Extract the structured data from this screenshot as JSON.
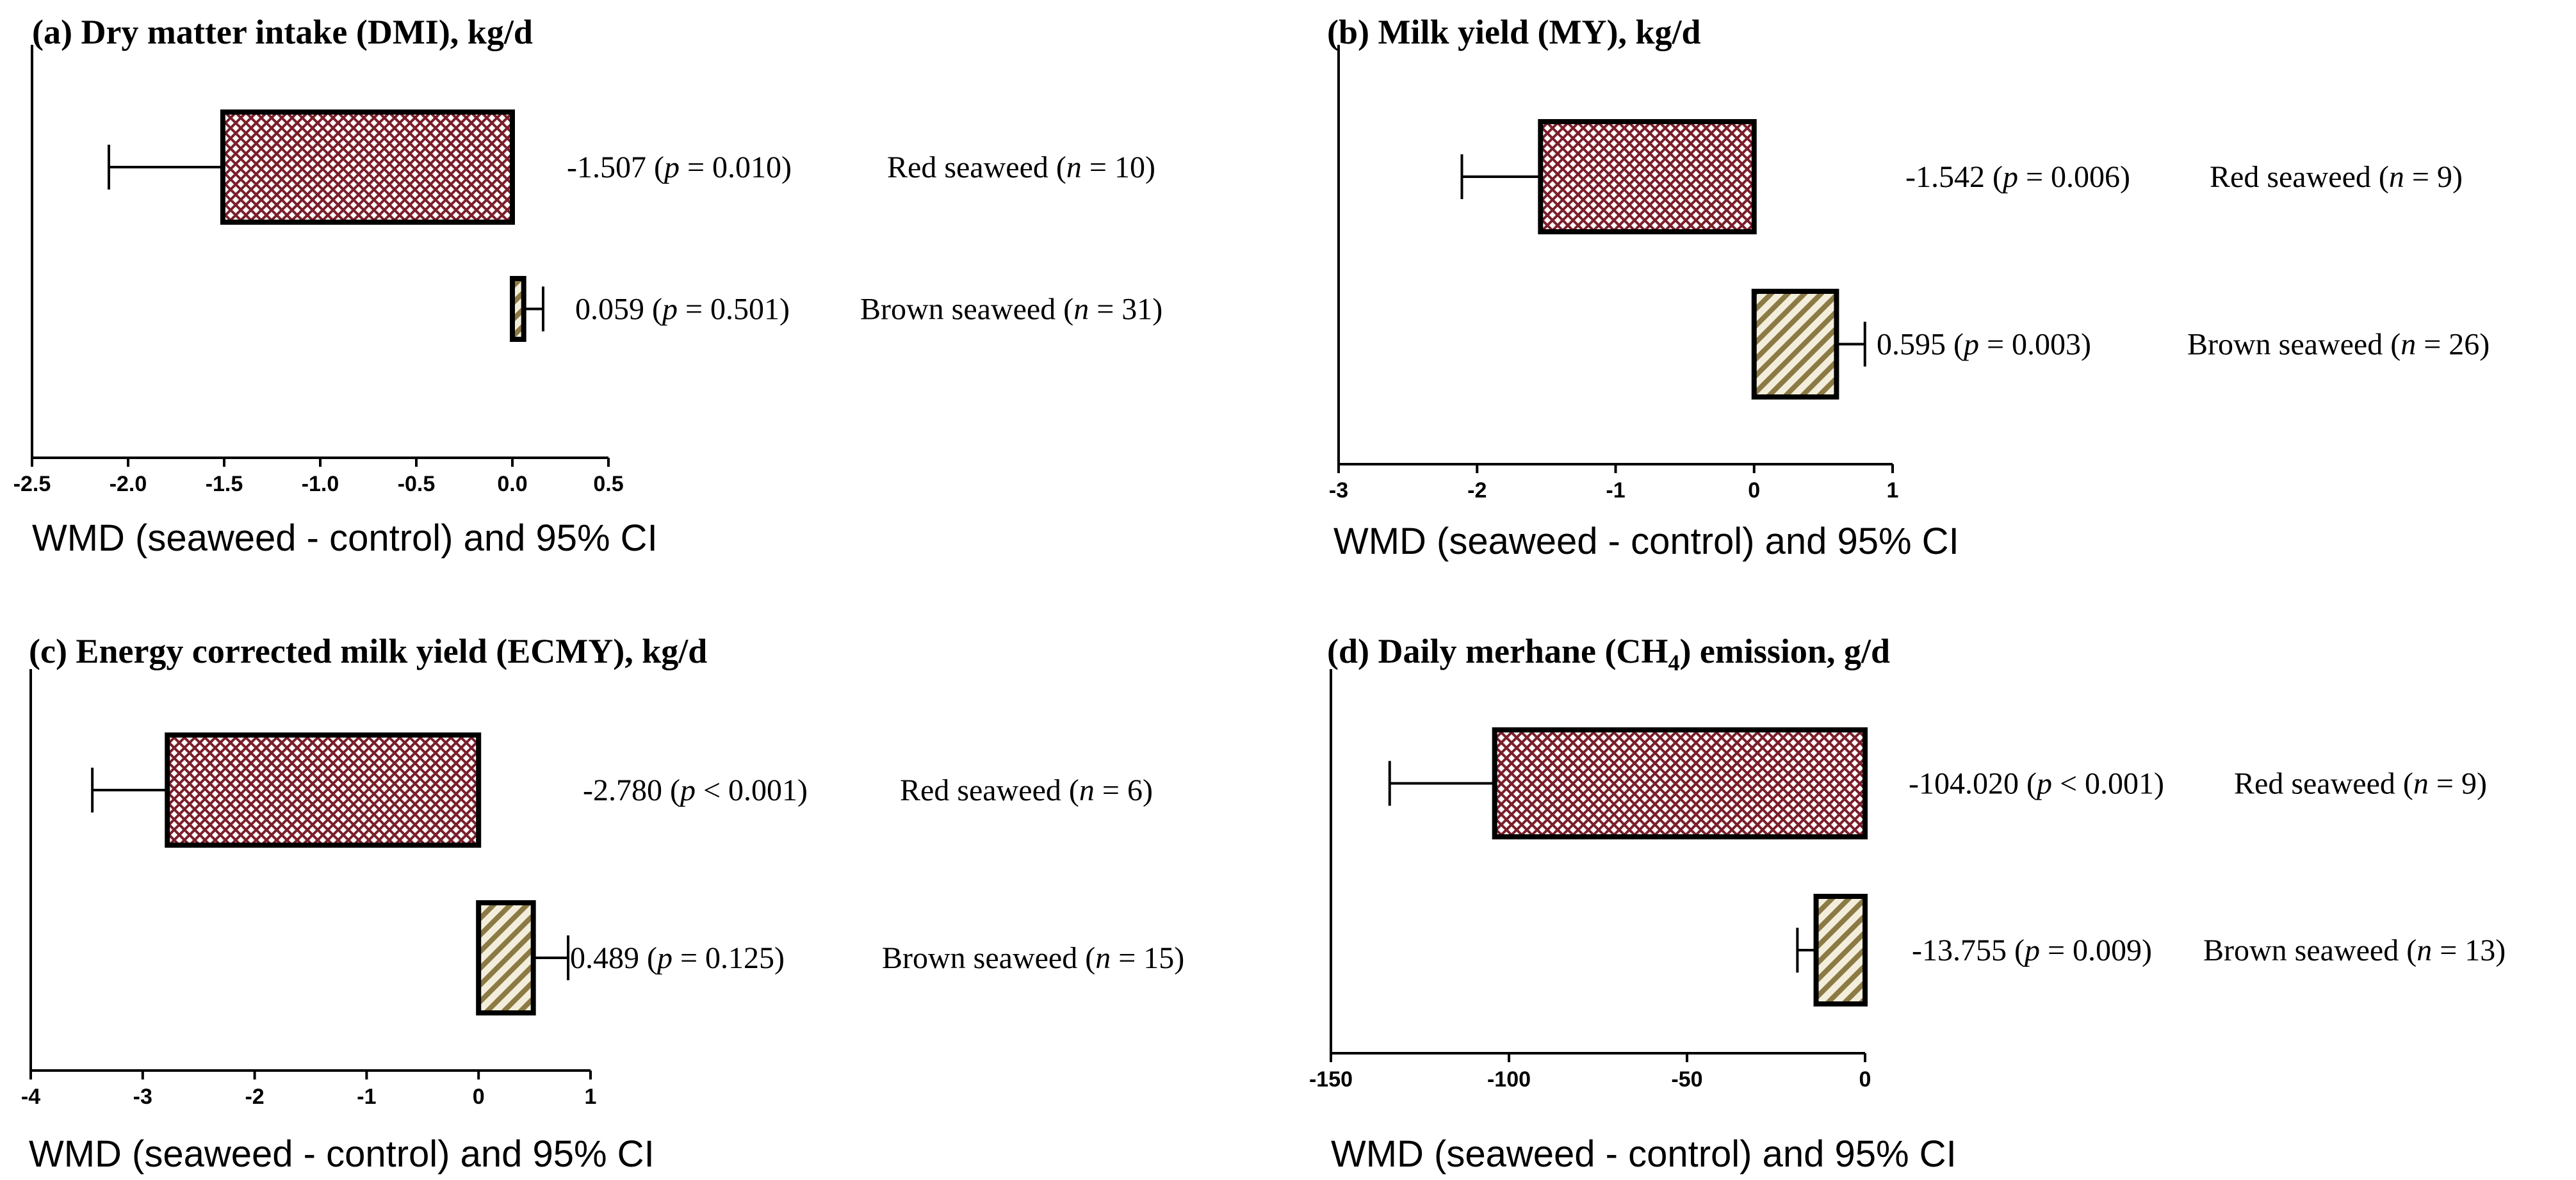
{
  "colors": {
    "red_seaweed_fill": "#7a1f2b",
    "red_seaweed_bg": "#ffffff",
    "brown_seaweed_fill": "#8c7a45",
    "brown_seaweed_bg": "#f3eedc",
    "axis": "#000000"
  },
  "chart_data": [
    {
      "id": "a",
      "type": "bar",
      "orientation": "horizontal",
      "title": "(a) Dry matter intake (DMI), kg/d",
      "title_html": [
        "(a) Dry matter intake (DMI), kg/d"
      ],
      "xlabel": "WMD (seaweed - control) and 95% CI",
      "ylabel": "",
      "xlim": [
        -2.5,
        0.5
      ],
      "xticks": [
        -2.5,
        -2.0,
        -1.5,
        -1.0,
        -0.5,
        0.0,
        0.5
      ],
      "xtick_labels": [
        "-2.5",
        "-2.0",
        "-1.5",
        "-1.0",
        "-0.5",
        "0.0",
        "0.5"
      ],
      "categories": [
        "Red seaweed",
        "Brown seaweed"
      ],
      "values": [
        -1.507,
        0.059
      ],
      "ci_bound": [
        -2.1,
        0.16
      ],
      "p_values": [
        "0.010",
        "0.501"
      ],
      "p_relation": [
        "=",
        "="
      ],
      "n": [
        10,
        31
      ],
      "value_labels": [
        "-1.507",
        "0.059"
      ]
    },
    {
      "id": "b",
      "type": "bar",
      "orientation": "horizontal",
      "title": "(b) Milk yield (MY), kg/d",
      "xlabel": "WMD (seaweed - control) and 95% CI",
      "ylabel": "",
      "xlim": [
        -3,
        1
      ],
      "xticks": [
        -3,
        -2,
        -1,
        0,
        1
      ],
      "xtick_labels": [
        "-3",
        "-2",
        "-1",
        "0",
        "1"
      ],
      "categories": [
        "Red seaweed",
        "Brown seaweed"
      ],
      "values": [
        -1.542,
        0.595
      ],
      "ci_bound": [
        -2.11,
        0.8
      ],
      "p_values": [
        "0.006",
        "0.003"
      ],
      "p_relation": [
        "=",
        "="
      ],
      "n": [
        9,
        26
      ],
      "value_labels": [
        "-1.542",
        "0.595"
      ]
    },
    {
      "id": "c",
      "type": "bar",
      "orientation": "horizontal",
      "title": "(c) Energy corrected milk yield (ECMY), kg/d",
      "xlabel": "WMD (seaweed - control) and 95% CI",
      "ylabel": "",
      "xlim": [
        -4,
        1
      ],
      "xticks": [
        -4,
        -3,
        -2,
        -1,
        0,
        1
      ],
      "xtick_labels": [
        "-4",
        "-3",
        "-2",
        "-1",
        "0",
        "1"
      ],
      "categories": [
        "Red seaweed",
        "Brown seaweed"
      ],
      "values": [
        -2.78,
        0.489
      ],
      "ci_bound": [
        -3.45,
        0.8
      ],
      "p_values": [
        "0.001",
        "0.125"
      ],
      "p_relation": [
        "<",
        "="
      ],
      "n": [
        6,
        15
      ],
      "value_labels": [
        "-2.780",
        "0.489"
      ]
    },
    {
      "id": "d",
      "type": "bar",
      "orientation": "horizontal",
      "title": "(d) Daily merhane (CH4) emission, g/d",
      "title_pre": "(d) Daily merhane (CH",
      "title_sub": "4",
      "title_post": ") emission, g/d",
      "xlabel": "WMD (seaweed - control) and 95% CI",
      "ylabel": "",
      "xlim": [
        -150,
        0
      ],
      "xticks": [
        -150,
        -100,
        -50,
        0
      ],
      "xtick_labels": [
        "-150",
        "-100",
        "-50",
        "0"
      ],
      "categories": [
        "Red seaweed",
        "Brown seaweed"
      ],
      "values": [
        -104.02,
        -13.755
      ],
      "ci_bound": [
        -133.5,
        -19
      ],
      "p_values": [
        "0.001",
        "0.009"
      ],
      "p_relation": [
        "<",
        "="
      ],
      "n": [
        9,
        13
      ],
      "value_labels": [
        "-104.020",
        "-13.755"
      ]
    }
  ]
}
